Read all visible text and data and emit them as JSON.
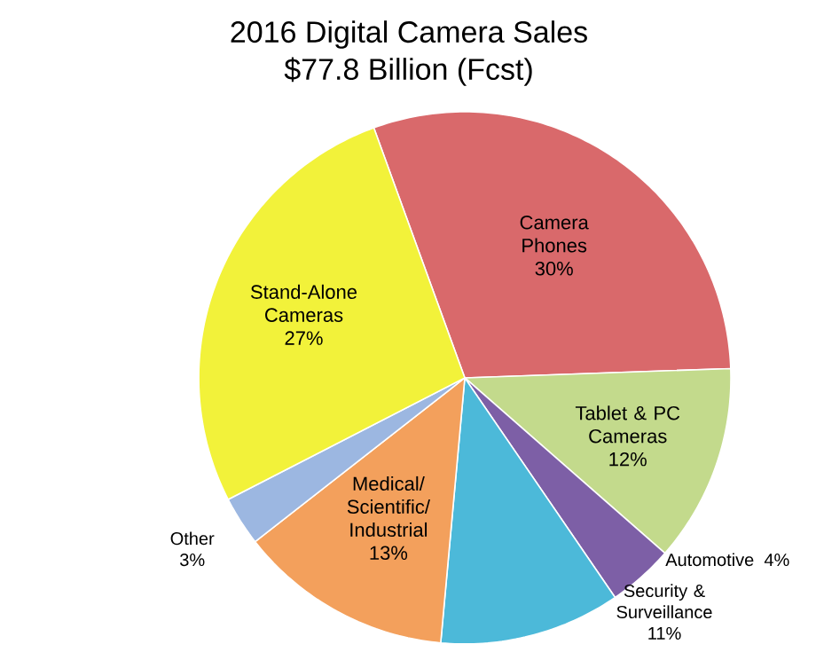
{
  "chart_data": {
    "type": "pie",
    "title": "2016 Digital Camera Sales",
    "subtitle": "$77.8 Billion (Fcst)",
    "categories": [
      "Camera Phones",
      "Tablet & PC Cameras",
      "Automotive",
      "Security & Surveillance",
      "Medical/ Scientific/ Industrial",
      "Other",
      "Stand-Alone Cameras"
    ],
    "values": [
      30,
      12,
      4,
      11,
      13,
      3,
      27
    ],
    "value_labels": [
      "30%",
      "12%",
      "4%",
      "11%",
      "13%",
      "3%",
      "27%"
    ],
    "colors": [
      "#d9696b",
      "#c3da8c",
      "#7d5fa6",
      "#4cb9d9",
      "#f3a05c",
      "#9cb7e1",
      "#f2f23a"
    ]
  }
}
